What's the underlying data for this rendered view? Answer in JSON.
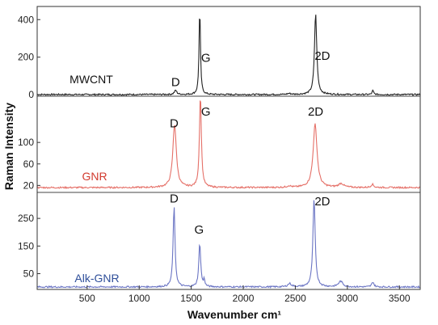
{
  "chart_data": {
    "type": "line",
    "xlabel": "Wavenumber cm¹",
    "ylabel": "Raman Intensity",
    "xlim": [
      20,
      3700
    ],
    "x_ticks": [
      500,
      1000,
      1500,
      2000,
      2500,
      3000,
      3500
    ],
    "x_tick_labels": [
      "500",
      "1000",
      "1500",
      "2000",
      "2500",
      "3000",
      "3500"
    ],
    "grid": false,
    "panels": [
      {
        "series_label": "MWCNT",
        "color": "#222222",
        "label_color": "#111111",
        "ylim": [
          -8,
          470
        ],
        "y_ticks": [
          0,
          200,
          400
        ],
        "y_tick_labels": [
          "0",
          "200",
          "400"
        ],
        "baseline": 1,
        "peaks": [
          {
            "x": 1350,
            "height": 22,
            "width": 28
          },
          {
            "x": 1582,
            "height": 458,
            "width": 16
          },
          {
            "x": 2440,
            "height": 5,
            "width": 40
          },
          {
            "x": 2695,
            "height": 432,
            "width": 26
          },
          {
            "x": 3245,
            "height": 22,
            "width": 16
          }
        ],
        "peak_labels": [
          {
            "text": "D",
            "x": 1350,
            "y": 45
          },
          {
            "text": "G",
            "x": 1640,
            "y": 175
          },
          {
            "text": "2D",
            "x": 2760,
            "y": 185
          }
        ]
      },
      {
        "series_label": "GNR",
        "color": "#e57068",
        "label_color": "#d23a2e",
        "ylim": [
          7,
          186
        ],
        "y_ticks": [
          20,
          60,
          100
        ],
        "y_tick_labels": [
          "20",
          "60",
          "100"
        ],
        "baseline": 16,
        "peaks": [
          {
            "x": 1340,
            "height": 118,
            "width": 40
          },
          {
            "x": 1588,
            "height": 172,
            "width": 22
          },
          {
            "x": 2440,
            "height": 3,
            "width": 40
          },
          {
            "x": 2690,
            "height": 118,
            "width": 45
          },
          {
            "x": 2940,
            "height": 7,
            "width": 60
          },
          {
            "x": 3240,
            "height": 6,
            "width": 30
          }
        ],
        "peak_labels": [
          {
            "text": "D",
            "x": 1335,
            "y": 128
          },
          {
            "text": "G",
            "x": 1640,
            "y": 150
          },
          {
            "text": "2D",
            "x": 2695,
            "y": 150
          }
        ]
      },
      {
        "series_label": "Alk-GNR",
        "color": "#6b75c4",
        "label_color": "#2f4f9a",
        "ylim": [
          -7,
          344
        ],
        "y_ticks": [
          50,
          150,
          250
        ],
        "y_tick_labels": [
          "50",
          "150",
          "250"
        ],
        "baseline": 2,
        "peaks": [
          {
            "x": 1335,
            "height": 292,
            "width": 22
          },
          {
            "x": 1582,
            "height": 158,
            "width": 22
          },
          {
            "x": 1625,
            "height": 25,
            "width": 14
          },
          {
            "x": 2445,
            "height": 12,
            "width": 40
          },
          {
            "x": 2680,
            "height": 318,
            "width": 26
          },
          {
            "x": 2935,
            "height": 20,
            "width": 50
          },
          {
            "x": 3245,
            "height": 18,
            "width": 24
          }
        ],
        "peak_labels": [
          {
            "text": "D",
            "x": 1335,
            "y": 308
          },
          {
            "text": "G",
            "x": 1575,
            "y": 195
          },
          {
            "text": "2D",
            "x": 2760,
            "y": 297
          }
        ]
      }
    ]
  }
}
